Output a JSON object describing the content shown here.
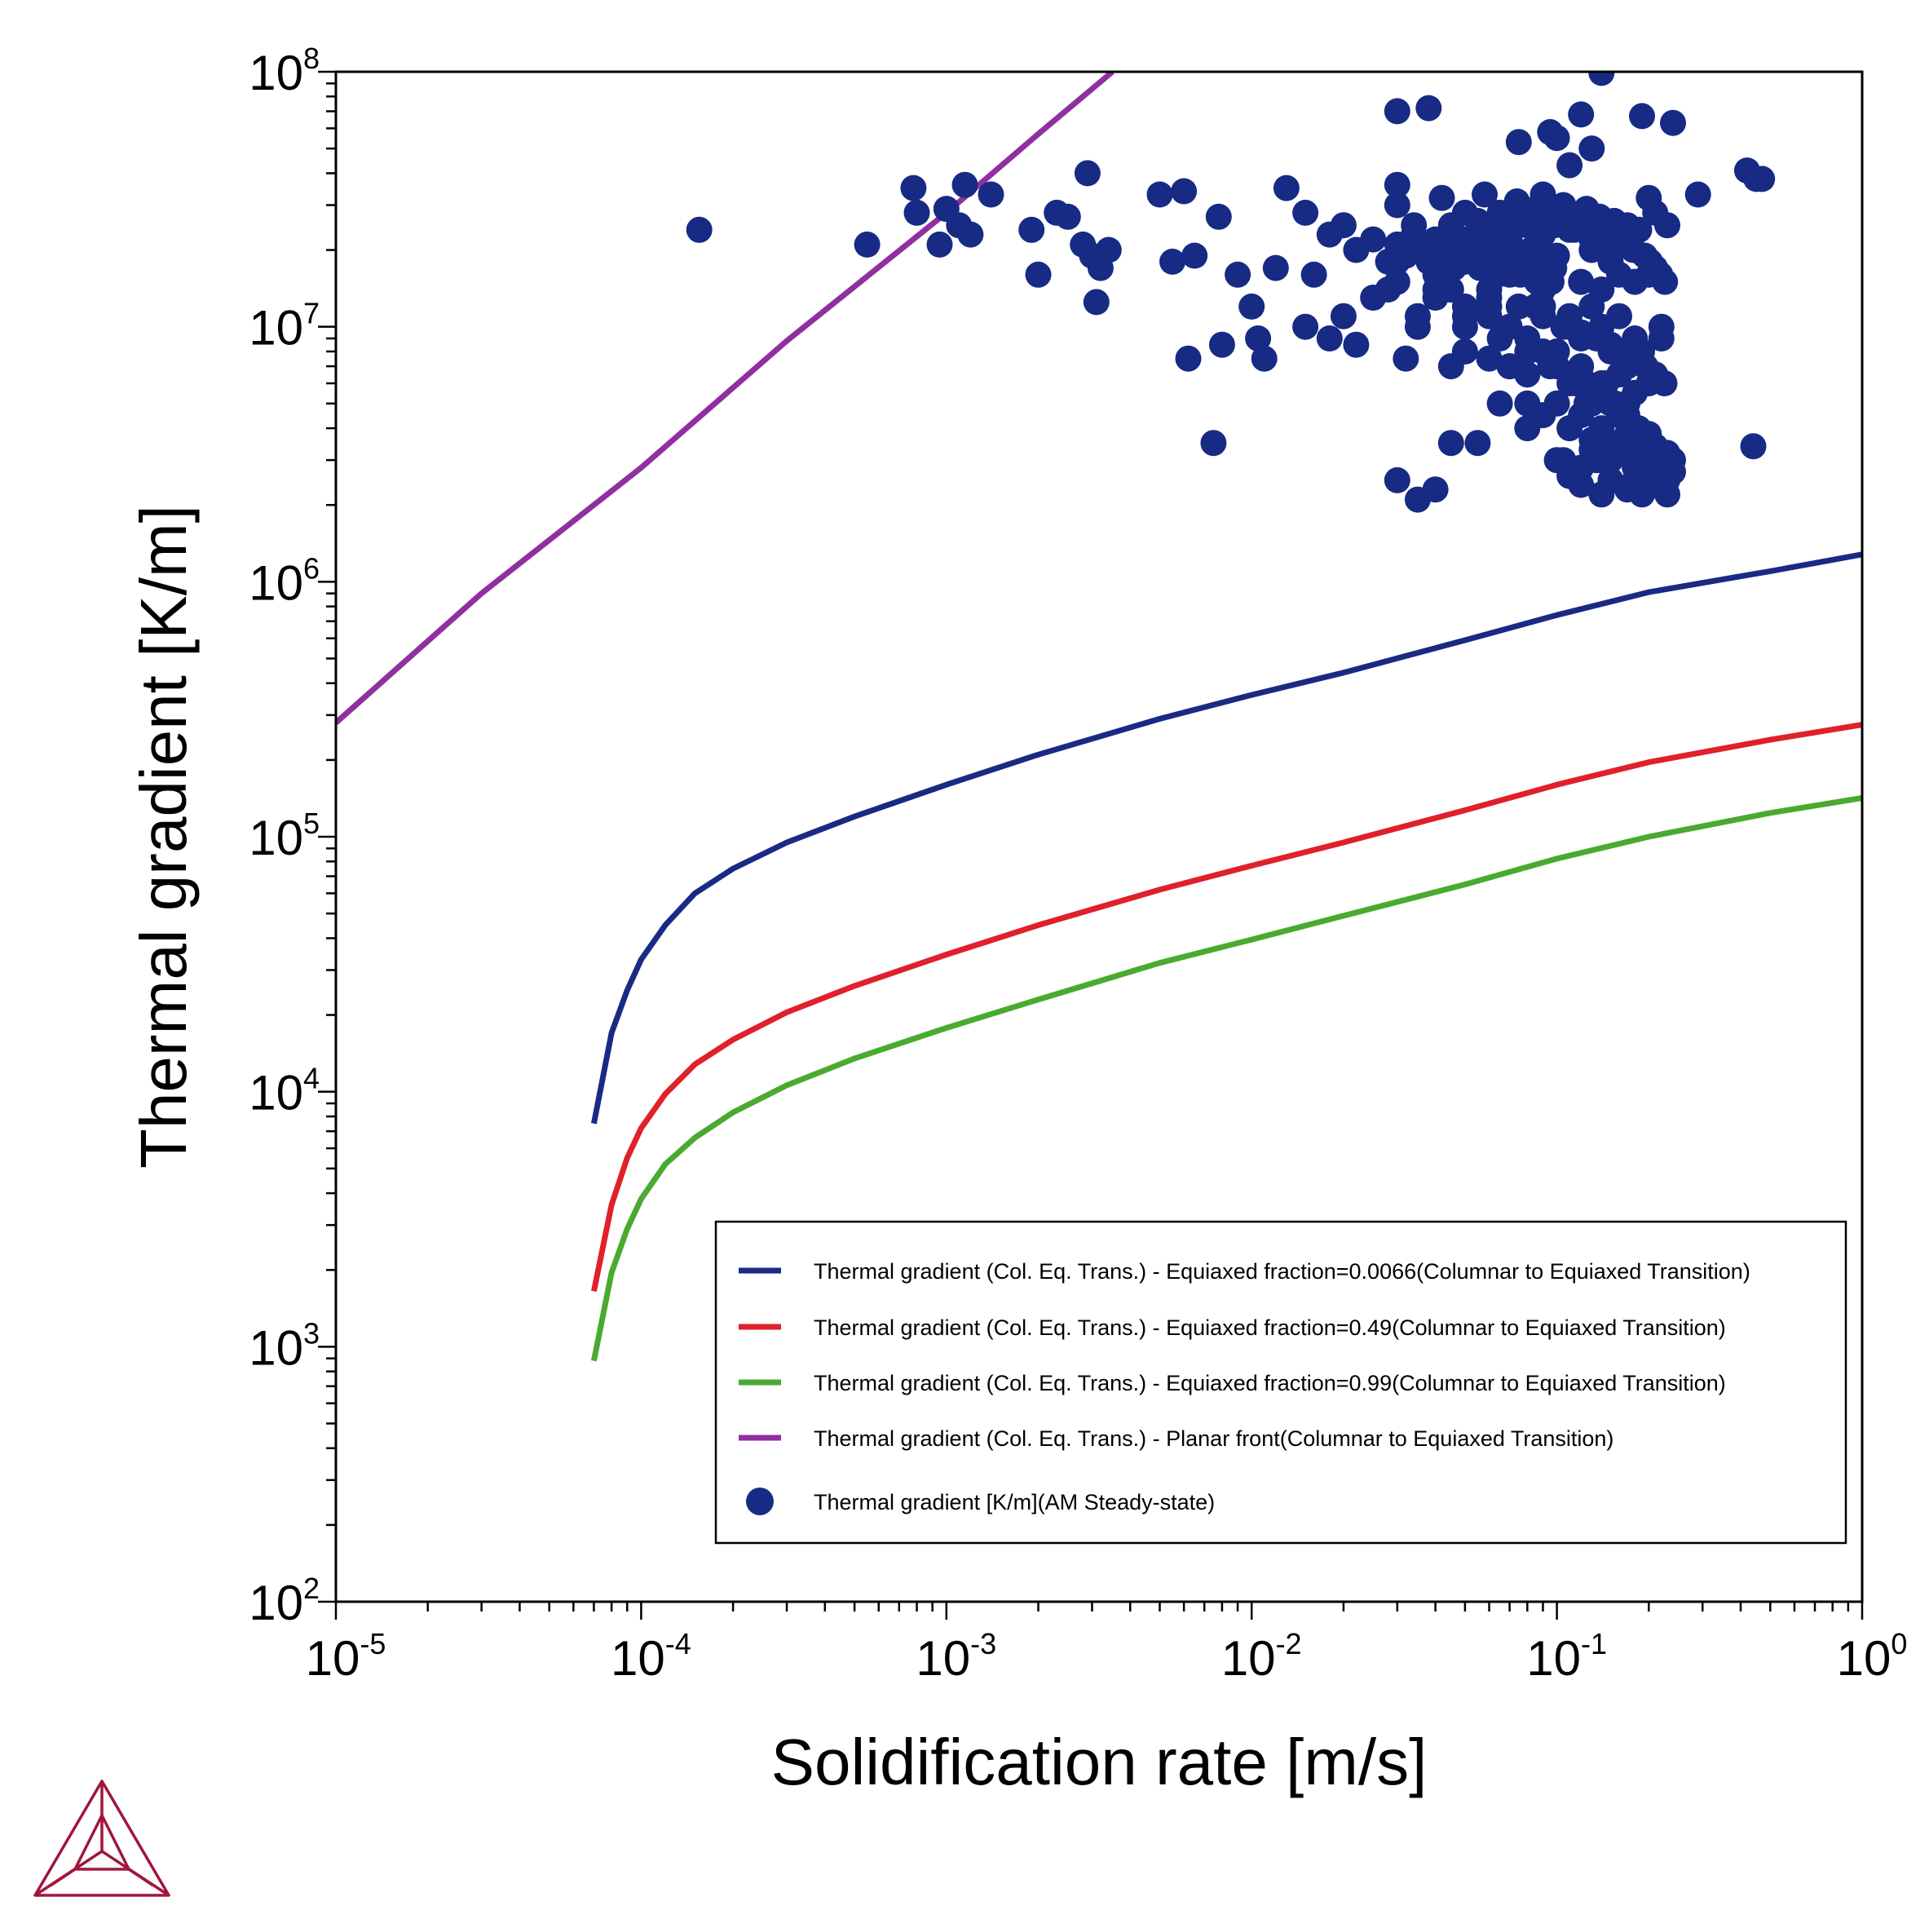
{
  "chart_data": {
    "type": "scatter",
    "x_scale": "log",
    "y_scale": "log",
    "xlabel": "Solidification rate [m/s]",
    "ylabel": "Thermal gradient [K/m]",
    "xlim": [
      1e-05,
      1
    ],
    "ylim": [
      100,
      100000000
    ],
    "grid": false,
    "legend_position": "bottom-right",
    "x_ticks": [
      {
        "value": 1e-05,
        "base": "10",
        "exp": "-5"
      },
      {
        "value": 0.0001,
        "base": "10",
        "exp": "-4"
      },
      {
        "value": 0.001,
        "base": "10",
        "exp": "-3"
      },
      {
        "value": 0.01,
        "base": "10",
        "exp": "-2"
      },
      {
        "value": 0.1,
        "base": "10",
        "exp": "-1"
      },
      {
        "value": 1,
        "base": "10",
        "exp": "0"
      }
    ],
    "y_ticks": [
      {
        "value": 100,
        "base": "10",
        "exp": "2"
      },
      {
        "value": 1000,
        "base": "10",
        "exp": "3"
      },
      {
        "value": 10000,
        "base": "10",
        "exp": "4"
      },
      {
        "value": 100000,
        "base": "10",
        "exp": "5"
      },
      {
        "value": 1000000,
        "base": "10",
        "exp": "6"
      },
      {
        "value": 10000000,
        "base": "10",
        "exp": "7"
      },
      {
        "value": 100000000,
        "base": "10",
        "exp": "8"
      }
    ],
    "series": [
      {
        "name": "Thermal gradient (Col. Eq. Trans.) - Equiaxed fraction=0.0066(Columnar to Equiaxed Transition)",
        "kind": "line",
        "color": "#1a2a84",
        "x": [
          7e-05,
          8e-05,
          9e-05,
          0.0001,
          0.00012,
          0.00015,
          0.0002,
          0.0003,
          0.0005,
          0.001,
          0.002,
          0.005,
          0.01,
          0.02,
          0.05,
          0.1,
          0.2,
          0.5,
          1
        ],
        "y": [
          7500,
          17000,
          25000,
          33000,
          45000,
          60000,
          75000,
          95000,
          120000,
          160000,
          210000,
          290000,
          360000,
          440000,
          590000,
          740000,
          910000,
          1100000,
          1280000
        ]
      },
      {
        "name": "Thermal gradient (Col. Eq. Trans.) - Equiaxed fraction=0.49(Columnar to Equiaxed Transition)",
        "kind": "line",
        "color": "#e0202a",
        "x": [
          7e-05,
          8e-05,
          9e-05,
          0.0001,
          0.00012,
          0.00015,
          0.0002,
          0.0003,
          0.0005,
          0.001,
          0.002,
          0.005,
          0.01,
          0.02,
          0.05,
          0.1,
          0.2,
          0.5,
          1
        ],
        "y": [
          1650,
          3600,
          5500,
          7200,
          9800,
          12800,
          16000,
          20500,
          26000,
          34500,
          45000,
          62000,
          77000,
          95000,
          127000,
          160000,
          196000,
          240000,
          275000
        ]
      },
      {
        "name": "Thermal gradient (Col. Eq. Trans.) - Equiaxed fraction=0.99(Columnar to Equiaxed Transition)",
        "kind": "line",
        "color": "#4aaa30",
        "x": [
          7e-05,
          8e-05,
          9e-05,
          0.0001,
          0.00012,
          0.00015,
          0.0002,
          0.0003,
          0.0005,
          0.001,
          0.002,
          0.005,
          0.01,
          0.02,
          0.05,
          0.1,
          0.2,
          0.5,
          1
        ],
        "y": [
          880,
          1950,
          2900,
          3800,
          5200,
          6600,
          8300,
          10600,
          13500,
          17800,
          23000,
          32000,
          39500,
          49000,
          65000,
          82000,
          100000,
          124000,
          142000
        ]
      },
      {
        "name": "Thermal gradient (Col. Eq. Trans.) - Planar front(Columnar to Equiaxed Transition)",
        "kind": "line",
        "color": "#9030a0",
        "x": [
          1e-05,
          3e-05,
          0.0001,
          0.0003,
          0.001,
          0.002,
          0.0035
        ],
        "y": [
          280000,
          900000,
          2800000,
          8800000,
          28000000,
          57000000,
          100000000
        ]
      },
      {
        "name": "Thermal gradient [K/m](AM Steady-state)",
        "kind": "scatter",
        "color": "#172a84",
        "x": [
          0.000155,
          0.00055,
          0.00078,
          0.0008,
          0.00095,
          0.001,
          0.0011,
          0.00115,
          0.0012,
          0.0014,
          0.0019,
          0.002,
          0.0023,
          0.0025,
          0.0028,
          0.0029,
          0.003,
          0.0031,
          0.0032,
          0.0034,
          0.005,
          0.0055,
          0.006,
          0.0062,
          0.0065,
          0.0075,
          0.0078,
          0.008,
          0.009,
          0.01,
          0.0105,
          0.011,
          0.012,
          0.013,
          0.015,
          0.016,
          0.018,
          0.02,
          0.022,
          0.025,
          0.028,
          0.03,
          0.032,
          0.035,
          0.038,
          0.04,
          0.045,
          0.05,
          0.055,
          0.06,
          0.065,
          0.07,
          0.075,
          0.08,
          0.085,
          0.09,
          0.095,
          0.1,
          0.105,
          0.11,
          0.115,
          0.12,
          0.125,
          0.13,
          0.135,
          0.14,
          0.145,
          0.15,
          0.16,
          0.17,
          0.18,
          0.19,
          0.2,
          0.21,
          0.22,
          0.23,
          0.24,
          0.03,
          0.04,
          0.05,
          0.06,
          0.07,
          0.08,
          0.09,
          0.1,
          0.11,
          0.12,
          0.13,
          0.14,
          0.15,
          0.16,
          0.18,
          0.2,
          0.22,
          0.04,
          0.05,
          0.06,
          0.07,
          0.08,
          0.09,
          0.1,
          0.11,
          0.12,
          0.13,
          0.14,
          0.15,
          0.16,
          0.17,
          0.18,
          0.19,
          0.05,
          0.06,
          0.07,
          0.08,
          0.09,
          0.1,
          0.11,
          0.12,
          0.13,
          0.14,
          0.15,
          0.16,
          0.17,
          0.18,
          0.2,
          0.08,
          0.09,
          0.1,
          0.11,
          0.12,
          0.13,
          0.14,
          0.15,
          0.16,
          0.17,
          0.18,
          0.19,
          0.2,
          0.21,
          0.22,
          0.23,
          0.24,
          0.1,
          0.11,
          0.12,
          0.13,
          0.14,
          0.15,
          0.16,
          0.17,
          0.18,
          0.19,
          0.2,
          0.21,
          0.22,
          0.23,
          0.24,
          0.03,
          0.035,
          0.04,
          0.045,
          0.05,
          0.055,
          0.06,
          0.065,
          0.07,
          0.075,
          0.08,
          0.085,
          0.09,
          0.095,
          0.1,
          0.105,
          0.11,
          0.115,
          0.12,
          0.125,
          0.13,
          0.135,
          0.14,
          0.015,
          0.018,
          0.02,
          0.022,
          0.025,
          0.028,
          0.03,
          0.032,
          0.034,
          0.036,
          0.038,
          0.04,
          0.042,
          0.044,
          0.046,
          0.048,
          0.05,
          0.052,
          0.054,
          0.056,
          0.058,
          0.06,
          0.062,
          0.064,
          0.066,
          0.068,
          0.07,
          0.072,
          0.074,
          0.076,
          0.078,
          0.08,
          0.082,
          0.084,
          0.086,
          0.088,
          0.09,
          0.092,
          0.094,
          0.096,
          0.098,
          0.03,
          0.045,
          0.06,
          0.075,
          0.09,
          0.105,
          0.12,
          0.135,
          0.15,
          0.165,
          0.18,
          0.195,
          0.21,
          0.225,
          0.035,
          0.05,
          0.065,
          0.08,
          0.095,
          0.11,
          0.125,
          0.14,
          0.155,
          0.17,
          0.185,
          0.2,
          0.03,
          0.034,
          0.042,
          0.05,
          0.058,
          0.066,
          0.074,
          0.082,
          0.09,
          0.098,
          0.106,
          0.114,
          0.122,
          0.13,
          0.138,
          0.146,
          0.154,
          0.162,
          0.17,
          0.178,
          0.186,
          0.194,
          0.202,
          0.21,
          0.218,
          0.226,
          0.15,
          0.14,
          0.12,
          0.13,
          0.045,
          0.03,
          0.2,
          0.21,
          0.23,
          0.29,
          0.42,
          0.45,
          0.47,
          0.44
        ],
        "y": [
          24000000,
          21000000,
          35000000,
          28000000,
          21000000,
          29000000,
          25000000,
          36000000,
          23000000,
          33000000,
          24000000,
          16000000,
          28000000,
          27000000,
          21000000,
          40000000,
          19000000,
          12500000,
          17000000,
          20000000,
          33000000,
          18000000,
          34000000,
          7500000,
          19000000,
          3500000,
          27000000,
          8500000,
          16000000,
          12000000,
          9000000,
          7500000,
          17000000,
          35000000,
          10000000,
          16000000,
          9000000,
          11000000,
          8500000,
          13000000,
          14000000,
          70000000,
          7500000,
          10000000,
          72000000,
          16000000,
          7000000,
          11000000,
          3500000,
          14000000,
          5000000,
          7000000,
          53000000,
          4000000,
          12000000,
          33000000,
          58000000,
          55000000,
          3000000,
          43000000,
          6000000,
          68000000,
          5000000,
          50000000,
          3000000,
          99000000,
          6000000,
          3000000,
          3500000,
          5000000,
          2500000,
          67000000,
          2600000,
          3000000,
          9000000,
          2500000,
          63000000,
          18000000,
          14000000,
          20000000,
          12000000,
          16000000,
          18000000,
          14000000,
          19000000,
          10000000,
          15000000,
          20000000,
          14000000,
          18000000,
          16000000,
          15000000,
          16000000,
          10000000,
          13000000,
          12000000,
          11000000,
          10000000,
          9000000,
          12000000,
          8000000,
          11000000,
          9000000,
          12000000,
          10000000,
          8000000,
          11000000,
          7000000,
          9000000,
          8000000,
          8000000,
          7500000,
          7000000,
          6500000,
          8000000,
          7000000,
          6000000,
          7000000,
          5500000,
          6000000,
          5000000,
          6500000,
          5000000,
          5500000,
          6000000,
          5000000,
          4500000,
          5000000,
          4000000,
          4500000,
          5000000,
          4000000,
          3500000,
          4500000,
          3800000,
          3200000,
          3600000,
          3000000,
          3400000,
          2800000,
          3200000,
          2700000,
          3000000,
          2600000,
          2400000,
          3600000,
          3000000,
          2500000,
          3200000,
          2300000,
          2800000,
          2200000,
          3000000,
          2400000,
          2600000,
          2200000,
          3000000,
          2500000,
          2100000,
          2300000,
          25000000,
          22000000,
          26000000,
          24000000,
          28000000,
          22000000,
          27000000,
          25000000,
          29000000,
          23000000,
          28000000,
          26000000,
          30000000,
          24000000,
          27000000,
          25000000,
          29000000,
          22000000,
          26000000,
          24000000,
          28000000,
          23000000,
          25000000,
          20000000,
          22000000,
          18000000,
          21000000,
          19000000,
          23000000,
          20000000,
          18000000,
          22000000,
          19000000,
          21000000,
          17000000,
          20000000,
          18000000,
          22000000,
          19000000,
          17000000,
          21000000,
          18000000,
          20000000,
          16000000,
          19000000,
          21000000,
          17000000,
          20000000,
          18000000,
          16000000,
          19000000,
          17000000,
          20000000,
          18000000,
          15000000,
          19000000,
          17000000,
          16000000,
          18000000,
          15000000,
          17000000,
          15000000,
          14000000,
          13000000,
          12000000,
          11000000,
          10000000,
          9500000,
          9000000,
          8500000,
          8000000,
          7500000,
          7000000,
          6500000,
          6000000,
          11000000,
          10000000,
          9000000,
          8000000,
          7000000,
          6500000,
          6000000,
          5500000,
          5000000,
          4500000,
          4000000,
          3800000,
          30000000,
          25000000,
          32000000,
          28000000,
          33000000,
          27000000,
          31000000,
          26000000,
          30000000,
          25000000,
          29000000,
          24000000,
          28000000,
          23000000,
          27000000,
          22000000,
          26000000,
          21000000,
          25000000,
          20000000,
          24000000,
          19000000,
          18000000,
          17000000,
          16000000,
          15000000,
          2500000,
          2200000,
          2800000,
          3300000,
          3500000,
          36000000,
          32000000,
          28000000,
          25000000,
          33000000,
          41000000,
          38000000,
          38000000,
          3400000
        ]
      }
    ]
  },
  "logo": {
    "name": "thermo-calc-logo-icon",
    "color": "#a0163a"
  }
}
